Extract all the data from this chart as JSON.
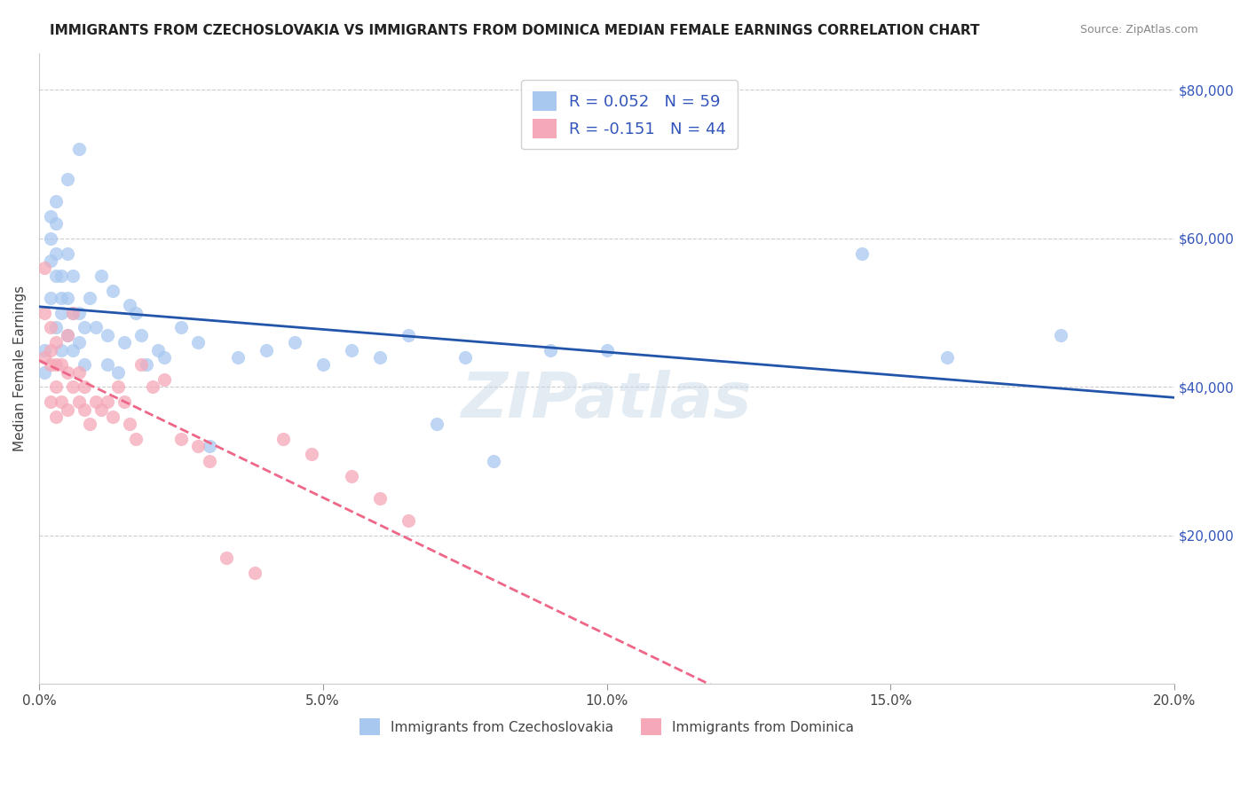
{
  "title": "IMMIGRANTS FROM CZECHOSLOVAKIA VS IMMIGRANTS FROM DOMINICA MEDIAN FEMALE EARNINGS CORRELATION CHART",
  "source": "Source: ZipAtlas.com",
  "ylabel": "Median Female Earnings",
  "y_ticks": [
    0,
    20000,
    40000,
    60000,
    80000
  ],
  "y_tick_labels": [
    "",
    "$20,000",
    "$40,000",
    "$60,000",
    "$80,000"
  ],
  "x_min": 0.0,
  "x_max": 0.2,
  "y_min": 0,
  "y_max": 85000,
  "R_czech": 0.052,
  "N_czech": 59,
  "R_dominica": -0.151,
  "N_dominica": 44,
  "color_czech": "#a8c8f0",
  "color_dominica": "#f5a8b8",
  "line_color_czech": "#2255aa",
  "line_color_dominica": "#ee6688",
  "watermark": "ZIPatlas",
  "watermark_color": "#c8d8e8",
  "legend_color": "#3355bb",
  "czech_x": [
    0.001,
    0.001,
    0.002,
    0.002,
    0.002,
    0.002,
    0.003,
    0.003,
    0.003,
    0.003,
    0.003,
    0.004,
    0.004,
    0.004,
    0.004,
    0.005,
    0.005,
    0.005,
    0.005,
    0.006,
    0.006,
    0.006,
    0.007,
    0.007,
    0.007,
    0.008,
    0.008,
    0.009,
    0.01,
    0.011,
    0.012,
    0.012,
    0.013,
    0.014,
    0.015,
    0.016,
    0.017,
    0.018,
    0.019,
    0.021,
    0.022,
    0.025,
    0.028,
    0.03,
    0.035,
    0.04,
    0.045,
    0.05,
    0.055,
    0.06,
    0.065,
    0.07,
    0.075,
    0.08,
    0.09,
    0.1,
    0.145,
    0.16,
    0.18
  ],
  "czech_y": [
    45000,
    42000,
    63000,
    60000,
    57000,
    52000,
    65000,
    62000,
    58000,
    55000,
    48000,
    55000,
    52000,
    50000,
    45000,
    68000,
    58000,
    52000,
    47000,
    55000,
    50000,
    45000,
    72000,
    50000,
    46000,
    48000,
    43000,
    52000,
    48000,
    55000,
    47000,
    43000,
    53000,
    42000,
    46000,
    51000,
    50000,
    47000,
    43000,
    45000,
    44000,
    48000,
    46000,
    32000,
    44000,
    45000,
    46000,
    43000,
    45000,
    44000,
    47000,
    35000,
    44000,
    30000,
    45000,
    45000,
    58000,
    44000,
    47000
  ],
  "dominica_x": [
    0.001,
    0.001,
    0.001,
    0.002,
    0.002,
    0.002,
    0.002,
    0.003,
    0.003,
    0.003,
    0.003,
    0.004,
    0.004,
    0.005,
    0.005,
    0.005,
    0.006,
    0.006,
    0.007,
    0.007,
    0.008,
    0.008,
    0.009,
    0.01,
    0.011,
    0.012,
    0.013,
    0.014,
    0.015,
    0.016,
    0.017,
    0.018,
    0.02,
    0.022,
    0.025,
    0.028,
    0.03,
    0.033,
    0.038,
    0.043,
    0.048,
    0.055,
    0.06,
    0.065
  ],
  "dominica_y": [
    56000,
    50000,
    44000,
    48000,
    45000,
    43000,
    38000,
    46000,
    43000,
    40000,
    36000,
    43000,
    38000,
    47000,
    42000,
    37000,
    50000,
    40000,
    42000,
    38000,
    40000,
    37000,
    35000,
    38000,
    37000,
    38000,
    36000,
    40000,
    38000,
    35000,
    33000,
    43000,
    40000,
    41000,
    33000,
    32000,
    30000,
    17000,
    15000,
    33000,
    31000,
    28000,
    25000,
    22000
  ]
}
